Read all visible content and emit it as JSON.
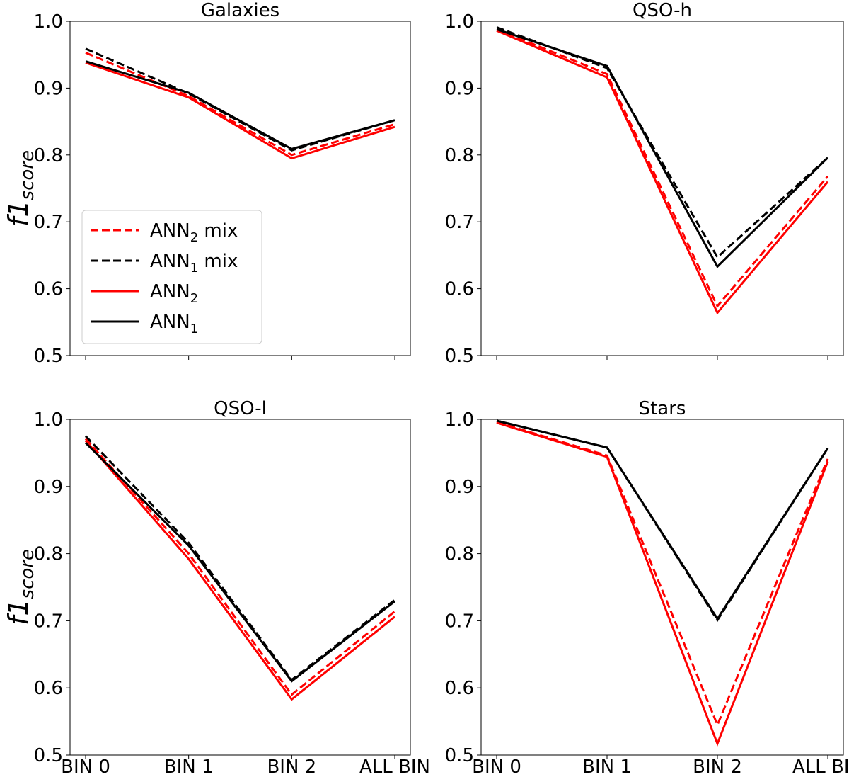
{
  "chart_data": [
    {
      "type": "line",
      "title": "Galaxies",
      "categories": [
        "BIN 0",
        "BIN 1",
        "BIN 2",
        "ALL BIN"
      ],
      "ylim": [
        0.5,
        1.0
      ],
      "yticks": [
        "0.5",
        "0.6",
        "0.7",
        "0.8",
        "0.9",
        "1.0"
      ],
      "ylabel": "f1",
      "ylabel_sub": "score",
      "show_xticklabels": false,
      "show_legend": true,
      "series": [
        {
          "key": "ann2mix",
          "values": [
            0.953,
            0.888,
            0.8,
            0.846
          ]
        },
        {
          "key": "ann1mix",
          "values": [
            0.959,
            0.892,
            0.807,
            0.852
          ]
        },
        {
          "key": "ann2",
          "values": [
            0.938,
            0.886,
            0.795,
            0.842
          ]
        },
        {
          "key": "ann1",
          "values": [
            0.94,
            0.893,
            0.809,
            0.852
          ]
        }
      ]
    },
    {
      "type": "line",
      "title": "QSO-h",
      "categories": [
        "BIN 0",
        "BIN 1",
        "BIN 2",
        "ALL BIN"
      ],
      "ylim": [
        0.5,
        1.0
      ],
      "yticks": [
        "0.5",
        "0.6",
        "0.7",
        "0.8",
        "0.9",
        "1.0"
      ],
      "ylabel": "",
      "ylabel_sub": "",
      "show_xticklabels": false,
      "show_legend": false,
      "series": [
        {
          "key": "ann2mix",
          "values": [
            0.988,
            0.921,
            0.574,
            0.768
          ]
        },
        {
          "key": "ann1mix",
          "values": [
            0.991,
            0.93,
            0.647,
            0.796
          ]
        },
        {
          "key": "ann2",
          "values": [
            0.986,
            0.916,
            0.564,
            0.76
          ]
        },
        {
          "key": "ann1",
          "values": [
            0.988,
            0.933,
            0.633,
            0.796
          ]
        }
      ]
    },
    {
      "type": "line",
      "title": "QSO-l",
      "categories": [
        "BIN 0",
        "BIN 1",
        "BIN 2",
        "ALL BIN"
      ],
      "ylim": [
        0.5,
        1.0
      ],
      "yticks": [
        "0.5",
        "0.6",
        "0.7",
        "0.8",
        "0.9",
        "1.0"
      ],
      "ylabel": "f1",
      "ylabel_sub": "score",
      "show_xticklabels": true,
      "show_legend": false,
      "series": [
        {
          "key": "ann2mix",
          "values": [
            0.971,
            0.8,
            0.59,
            0.714
          ]
        },
        {
          "key": "ann1mix",
          "values": [
            0.975,
            0.816,
            0.612,
            0.731
          ]
        },
        {
          "key": "ann2",
          "values": [
            0.968,
            0.792,
            0.583,
            0.706
          ]
        },
        {
          "key": "ann1",
          "values": [
            0.965,
            0.812,
            0.61,
            0.729
          ]
        }
      ]
    },
    {
      "type": "line",
      "title": "Stars",
      "categories": [
        "BIN 0",
        "BIN 1",
        "BIN 2",
        "ALL BIN"
      ],
      "ylim": [
        0.5,
        1.0
      ],
      "yticks": [
        "0.5",
        "0.6",
        "0.7",
        "0.8",
        "0.9",
        "1.0"
      ],
      "ylabel": "",
      "ylabel_sub": "",
      "show_xticklabels": true,
      "show_legend": false,
      "series": [
        {
          "key": "ann2mix",
          "values": [
            0.996,
            0.946,
            0.545,
            0.941
          ]
        },
        {
          "key": "ann1mix",
          "values": [
            0.998,
            0.958,
            0.701,
            0.957
          ]
        },
        {
          "key": "ann2",
          "values": [
            0.995,
            0.944,
            0.517,
            0.937
          ]
        },
        {
          "key": "ann1",
          "values": [
            0.998,
            0.958,
            0.703,
            0.957
          ]
        }
      ]
    }
  ],
  "legend": [
    {
      "key": "ann2mix",
      "base": "ANN",
      "sub": "2",
      "suffix": " mix",
      "color": "#ff0000",
      "dashed": true
    },
    {
      "key": "ann1mix",
      "base": "ANN",
      "sub": "1",
      "suffix": " mix",
      "color": "#000000",
      "dashed": true
    },
    {
      "key": "ann2",
      "base": "ANN",
      "sub": "2",
      "suffix": "",
      "color": "#ff0000",
      "dashed": false
    },
    {
      "key": "ann1",
      "base": "ANN",
      "sub": "1",
      "suffix": "",
      "color": "#000000",
      "dashed": false
    }
  ]
}
